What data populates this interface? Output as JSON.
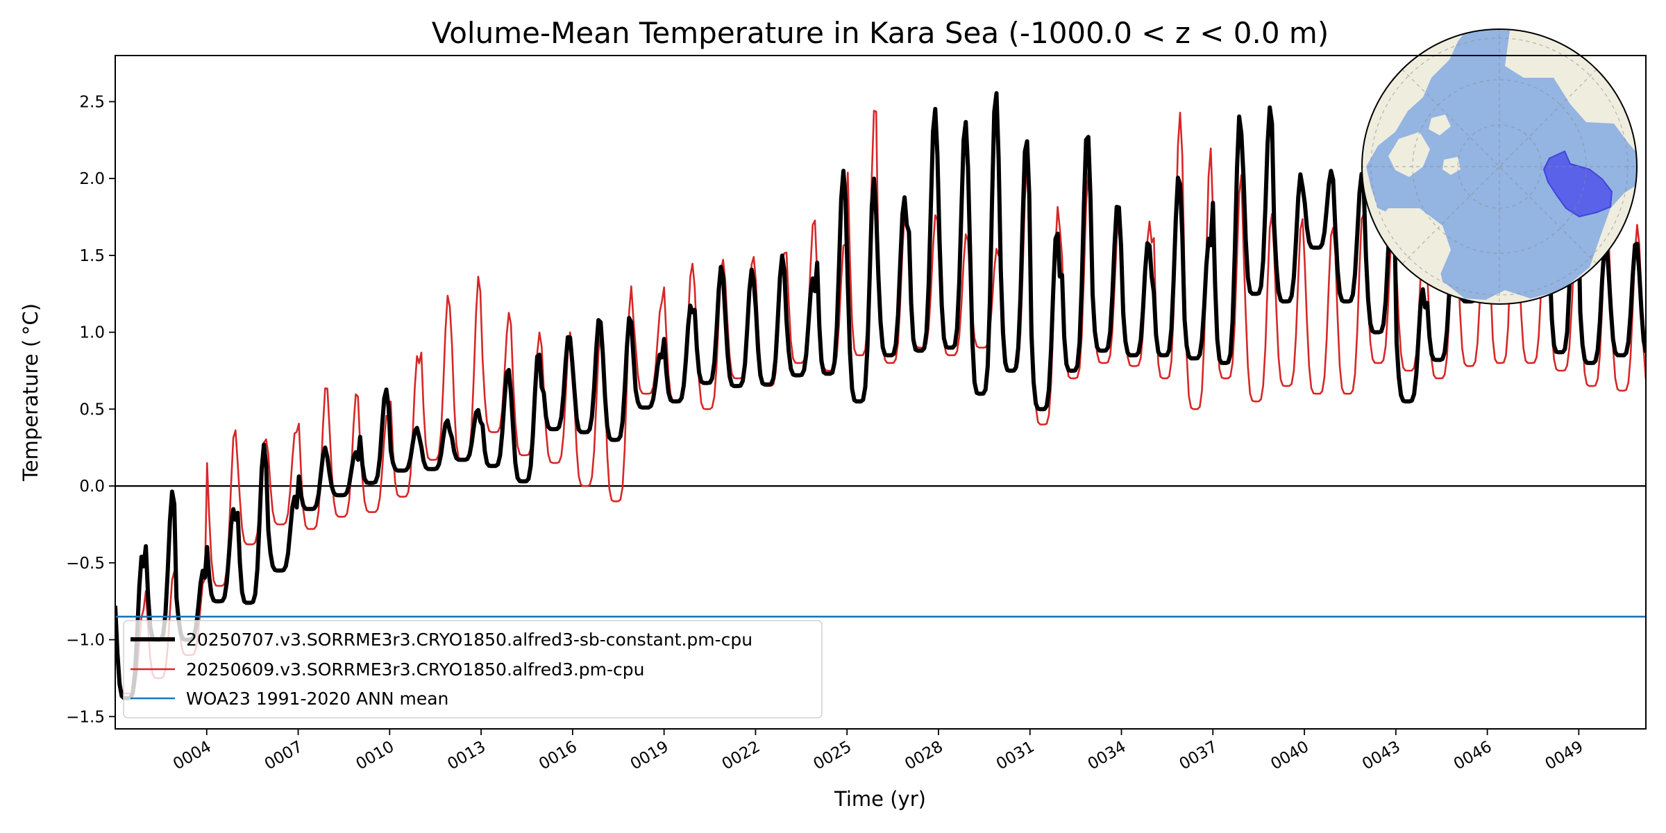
{
  "chart_data": {
    "type": "line",
    "title": "Volume-Mean Temperature in Kara Sea (-1000.0 < z < 0.0 m)",
    "xlabel": "Time (yr)",
    "ylabel": "Temperature ($^\\circ$C)",
    "ylabel_display": "Temperature ( °C)",
    "xlim": [
      1.0,
      51.2
    ],
    "ylim": [
      -1.58,
      2.8
    ],
    "x_ticks": [
      4,
      7,
      10,
      13,
      16,
      19,
      22,
      25,
      28,
      31,
      34,
      37,
      40,
      43,
      46,
      49
    ],
    "x_tick_labels": [
      "0004",
      "0007",
      "0010",
      "0013",
      "0016",
      "0019",
      "0022",
      "0025",
      "0028",
      "0031",
      "0034",
      "0037",
      "0040",
      "0043",
      "0046",
      "0049"
    ],
    "y_ticks": [
      -1.5,
      -1.0,
      -0.5,
      0.0,
      0.5,
      1.0,
      1.5,
      2.0,
      2.5
    ],
    "y_tick_labels": [
      "−1.5",
      "−1.0",
      "−0.5",
      "0.0",
      "0.5",
      "1.0",
      "1.5",
      "2.0",
      "2.5"
    ],
    "zero_line": 0.0,
    "grid": false,
    "legend_position": "lower-left",
    "inset_map": "north-polar-stereographic map with Kara Sea region highlighted",
    "series": [
      {
        "name": "20250707.v3.SORRME3r3.CRYO1850.alfred3-sb-constant.pm-cpu",
        "color": "#000000",
        "style": "thick",
        "annual_min": [
          -1.38,
          -1.0,
          -1.0,
          -0.75,
          -0.76,
          -0.55,
          -0.15,
          -0.06,
          0.02,
          0.1,
          0.11,
          0.17,
          0.13,
          0.03,
          0.37,
          0.35,
          0.3,
          0.51,
          0.55,
          0.67,
          0.65,
          0.66,
          0.72,
          0.73,
          0.55,
          0.85,
          0.88,
          0.9,
          0.6,
          0.75,
          0.5,
          0.75,
          0.88,
          0.85,
          0.85,
          0.83,
          0.8,
          1.25,
          1.2,
          1.55,
          1.2,
          1.0,
          0.55,
          0.82,
          1.2,
          1.25,
          1.28,
          0.87,
          0.8,
          0.85
        ],
        "annual_max": [
          -0.45,
          -0.03,
          -0.55,
          -0.15,
          0.27,
          -0.07,
          0.25,
          0.22,
          0.63,
          0.38,
          0.43,
          0.5,
          0.77,
          0.88,
          0.99,
          1.1,
          1.11,
          0.86,
          1.18,
          1.43,
          1.41,
          1.5,
          1.35,
          2.05,
          2.0,
          1.88,
          2.46,
          2.38,
          2.58,
          2.27,
          1.67,
          2.32,
          1.85,
          1.6,
          2.03,
          1.62,
          2.42,
          2.47,
          2.03,
          2.05,
          2.03,
          1.9,
          1.28,
          1.55,
          1.55,
          2.32,
          1.85,
          2.2,
          1.6,
          1.6
        ]
      },
      {
        "name": "20250609.v3.SORRME3r3.CRYO1850.alfred3.pm-cpu",
        "color": "#d62728",
        "style": "thin",
        "annual_min": [
          -1.35,
          -1.25,
          -1.1,
          -0.65,
          -0.38,
          -0.25,
          -0.28,
          -0.2,
          -0.17,
          -0.07,
          0.17,
          0.17,
          0.35,
          0.2,
          0.15,
          0.0,
          -0.1,
          0.6,
          0.55,
          0.5,
          0.7,
          0.65,
          0.8,
          0.75,
          0.85,
          0.8,
          0.9,
          0.85,
          0.9,
          0.75,
          0.4,
          0.7,
          0.8,
          0.78,
          0.7,
          0.5,
          0.7,
          0.55,
          0.65,
          0.6,
          0.6,
          0.8,
          0.75,
          0.7,
          0.78,
          0.8,
          0.8,
          0.75,
          0.65,
          0.62
        ],
        "annual_max": [
          -0.8,
          -0.55,
          -0.6,
          0.38,
          0.32,
          0.37,
          0.67,
          0.62,
          0.47,
          0.86,
          1.25,
          1.37,
          1.13,
          1.0,
          1.0,
          1.0,
          1.3,
          1.2,
          1.45,
          1.48,
          1.5,
          1.53,
          1.75,
          1.6,
          2.5,
          1.8,
          1.78,
          1.65,
          1.55,
          2.15,
          1.82,
          2.05,
          1.75,
          1.72,
          2.43,
          2.2,
          2.03,
          1.78,
          1.75,
          1.7,
          1.8,
          1.76,
          1.62,
          1.7,
          1.8,
          2.32,
          1.82,
          1.6,
          1.73,
          1.7
        ]
      },
      {
        "name": "WOA23 1991-2020 ANN mean",
        "color": "#1f77b4",
        "style": "constant",
        "value": -0.85
      }
    ]
  }
}
